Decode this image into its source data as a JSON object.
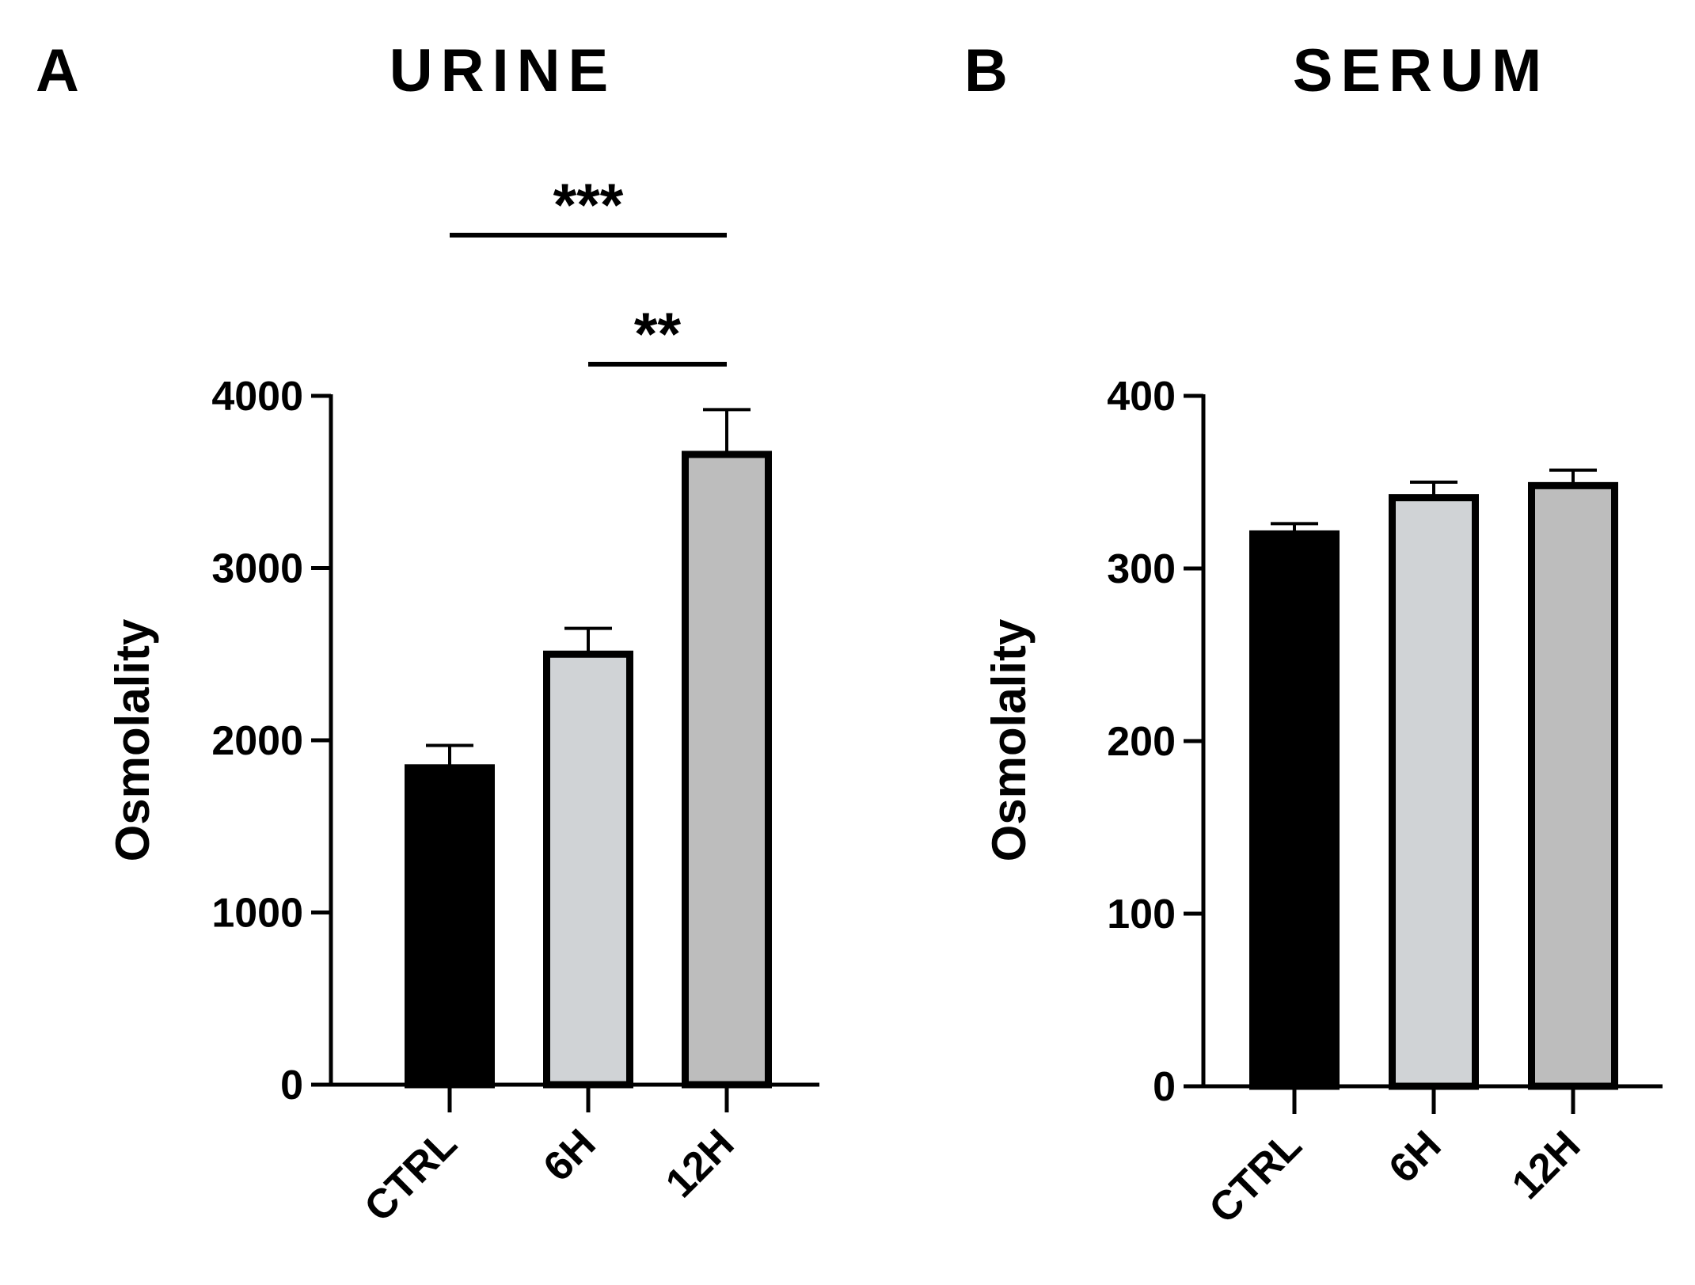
{
  "chart_data": [
    {
      "type": "bar",
      "panel": "A",
      "title": "URINE",
      "ylabel": "Osmolality",
      "xlabel": "",
      "ylim": [
        0,
        4000
      ],
      "yticks": [
        0,
        1000,
        2000,
        3000,
        4000
      ],
      "categories": [
        "CTRL",
        "6H",
        "12H"
      ],
      "values": [
        1840,
        2500,
        3660
      ],
      "errors": [
        130,
        150,
        260
      ],
      "colors": [
        "#000000",
        "#d0d3d6",
        "#bdbdbd"
      ],
      "significance": [
        {
          "from": "6H",
          "to": "12H",
          "label": "**"
        },
        {
          "from": "CTRL",
          "to": "12H",
          "label": "***"
        }
      ]
    },
    {
      "type": "bar",
      "panel": "B",
      "title": "SERUM",
      "ylabel": "Osmolality",
      "xlabel": "",
      "ylim": [
        0,
        400
      ],
      "yticks": [
        0,
        100,
        200,
        300,
        400
      ],
      "categories": [
        "CTRL",
        "6H",
        "12H"
      ],
      "values": [
        320,
        341,
        348
      ],
      "errors": [
        6,
        9,
        9
      ],
      "colors": [
        "#000000",
        "#d0d3d6",
        "#bdbdbd"
      ],
      "significance": []
    }
  ]
}
